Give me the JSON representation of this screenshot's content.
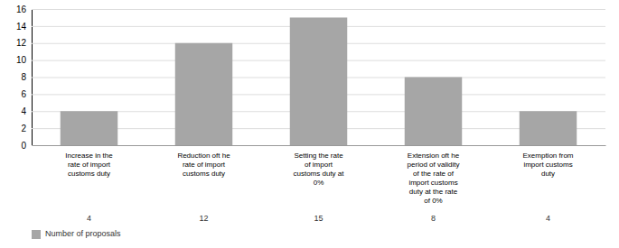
{
  "chart_data": {
    "type": "bar",
    "categories": [
      "Increase in the\nrate of import\ncustoms duty",
      "Reduction oft he\nrate of import\ncustoms duty",
      "Setting the rate\nof import\ncustoms duty at\n0%",
      "Extension oft he\nperiod of validity\nof the rate of\nimport customs\nduty at the rate\nof 0%",
      "Exemption from\nimport customs\nduty"
    ],
    "series": [
      {
        "name": "Number of proposals",
        "color": "#a6a6a6",
        "values": [
          4,
          12,
          15,
          8,
          4
        ]
      }
    ],
    "ylim": [
      0,
      16
    ],
    "yticks": [
      0,
      2,
      4,
      6,
      8,
      10,
      12,
      14,
      16
    ],
    "grid": true,
    "legend": "bottom-left",
    "data_labels": true
  }
}
